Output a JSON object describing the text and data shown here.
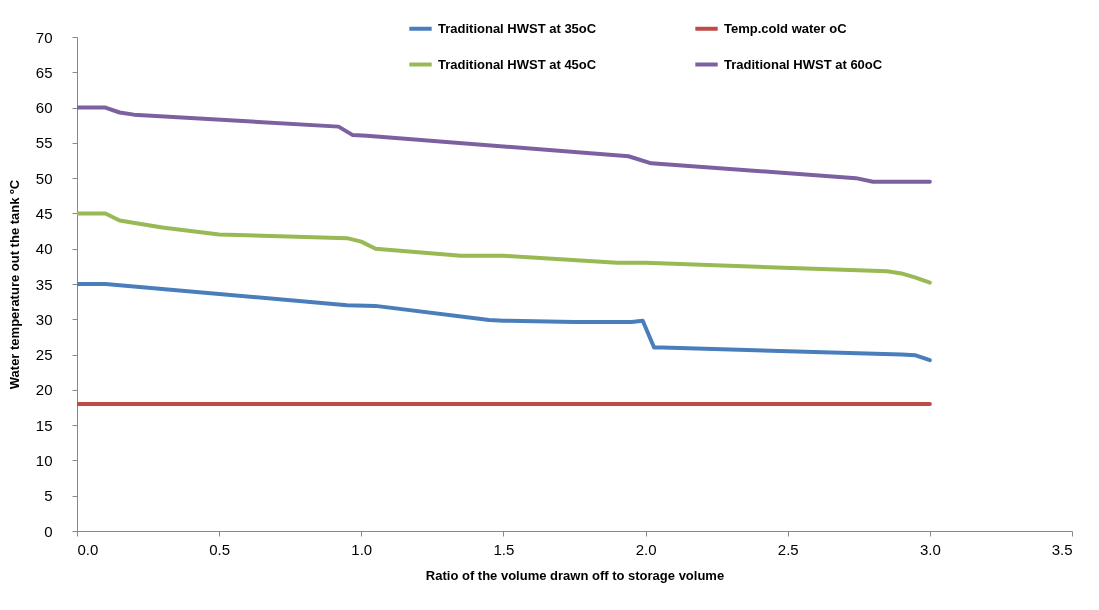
{
  "chart_data": {
    "type": "line",
    "xlabel": "Ratio of the volume drawn off to storage volume",
    "ylabel": "Water temperature out the tank ºC",
    "xlim": [
      0,
      3.5
    ],
    "xticks": [
      {
        "value": 0,
        "label": "0.0"
      },
      0.5,
      {
        "value": 1,
        "label": "1.0"
      },
      1.5,
      {
        "value": 2,
        "label": "2.0"
      },
      2.5,
      {
        "value": 3,
        "label": "3.0"
      },
      3.5
    ],
    "ylim": [
      0,
      70
    ],
    "yticks": [
      0,
      5,
      10,
      15,
      20,
      25,
      30,
      35,
      40,
      45,
      50,
      55,
      60,
      65,
      70
    ],
    "grid": false,
    "legend": "top",
    "line_style": "solid",
    "marker": "none",
    "series": [
      {
        "name": "Traditional HWST at 35oC",
        "color": "#4a7ebb",
        "x": [
          0,
          0.1,
          0.95,
          1.05,
          1.45,
          1.5,
          1.75,
          1.95,
          1.99,
          2.03,
          2.06,
          2.9,
          2.95,
          3.0
        ],
        "values": [
          35,
          35,
          32,
          31.9,
          29.9,
          29.8,
          29.6,
          29.6,
          29.8,
          26,
          26,
          25,
          24.9,
          24.2
        ]
      },
      {
        "name": "Temp.cold water oC",
        "color": "#be4b48",
        "x": [
          0,
          3.0
        ],
        "values": [
          18,
          18
        ]
      },
      {
        "name": "Traditional HWST at 45oC",
        "color": "#98b954",
        "x": [
          0,
          0.1,
          0.15,
          0.3,
          0.5,
          0.95,
          1.0,
          1.05,
          1.35,
          1.5,
          1.9,
          2.0,
          2.85,
          2.9,
          2.95,
          3.0
        ],
        "values": [
          45,
          45,
          44,
          43,
          42,
          41.5,
          41,
          40,
          39,
          39,
          38,
          38,
          36.8,
          36.5,
          35.9,
          35.2
        ]
      },
      {
        "name": "Traditional HWST at 60oC",
        "color": "#7d60a0",
        "x": [
          0,
          0.1,
          0.15,
          0.2,
          0.92,
          0.97,
          1.02,
          1.94,
          2.02,
          2.74,
          2.8,
          3.0
        ],
        "values": [
          60,
          60,
          59.3,
          59,
          57.3,
          56.1,
          56,
          53.1,
          52.1,
          50,
          49.5,
          49.5
        ]
      }
    ]
  }
}
